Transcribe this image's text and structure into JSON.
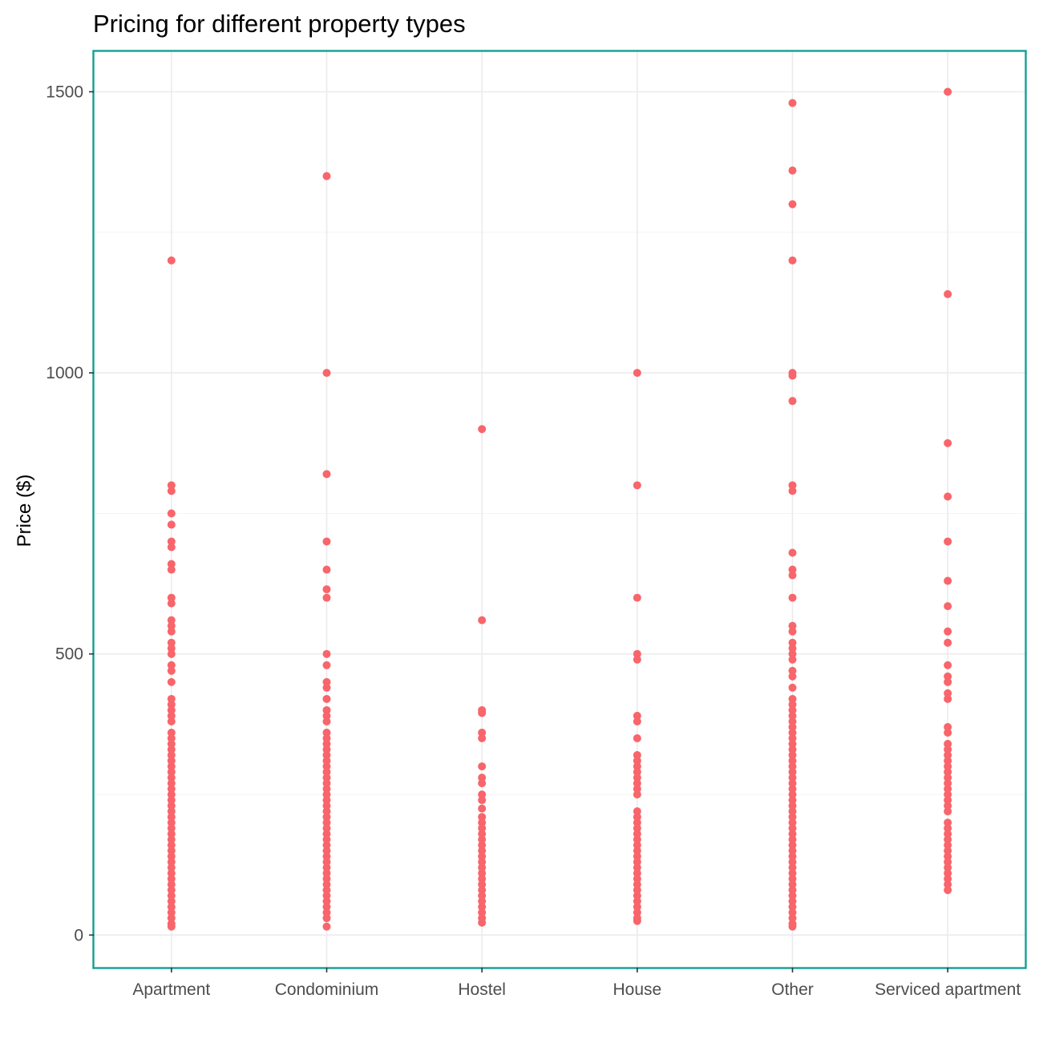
{
  "chart_data": {
    "type": "scatter",
    "title": "Pricing for different property types",
    "xlabel": "",
    "ylabel": "Price ($)",
    "categories": [
      "Apartment",
      "Condominium",
      "Hostel",
      "House",
      "Other",
      "Serviced apartment"
    ],
    "yticks": [
      0,
      500,
      1000,
      1500
    ],
    "ylim": [
      -58,
      1572
    ],
    "grid": true,
    "colors": {
      "points": "#f8656b",
      "panel_border": "#139f92"
    },
    "series": [
      {
        "category": "Apartment",
        "values": [
          1200,
          800,
          790,
          750,
          730,
          700,
          690,
          660,
          650,
          600,
          590,
          560,
          550,
          540,
          520,
          510,
          500,
          480,
          470,
          450,
          420,
          410,
          400,
          390,
          380,
          360,
          350,
          340,
          330,
          320,
          310,
          300,
          290,
          280,
          270,
          260,
          250,
          240,
          230,
          220,
          210,
          200,
          190,
          180,
          170,
          160,
          150,
          140,
          130,
          120,
          110,
          100,
          90,
          80,
          70,
          60,
          50,
          40,
          30,
          20,
          15
        ]
      },
      {
        "category": "Condominium",
        "values": [
          1350,
          1000,
          820,
          700,
          650,
          615,
          600,
          500,
          480,
          450,
          440,
          420,
          400,
          390,
          380,
          360,
          350,
          340,
          330,
          320,
          310,
          300,
          290,
          280,
          270,
          260,
          250,
          240,
          230,
          220,
          210,
          200,
          190,
          180,
          170,
          160,
          150,
          140,
          130,
          120,
          110,
          100,
          90,
          80,
          70,
          60,
          50,
          40,
          30,
          15
        ]
      },
      {
        "category": "Hostel",
        "values": [
          900,
          560,
          400,
          395,
          360,
          350,
          300,
          280,
          270,
          250,
          240,
          225,
          210,
          200,
          190,
          180,
          170,
          160,
          150,
          140,
          130,
          120,
          110,
          100,
          90,
          80,
          70,
          60,
          50,
          40,
          30,
          22
        ]
      },
      {
        "category": "House",
        "values": [
          1000,
          800,
          600,
          500,
          490,
          390,
          380,
          350,
          320,
          310,
          300,
          290,
          280,
          270,
          260,
          250,
          220,
          210,
          200,
          190,
          180,
          170,
          160,
          150,
          140,
          130,
          120,
          110,
          100,
          90,
          80,
          70,
          60,
          50,
          40,
          30,
          25
        ]
      },
      {
        "category": "Other",
        "values": [
          1480,
          1360,
          1300,
          1200,
          1000,
          995,
          950,
          800,
          790,
          680,
          650,
          640,
          600,
          550,
          540,
          520,
          510,
          500,
          490,
          470,
          460,
          440,
          420,
          410,
          400,
          390,
          380,
          370,
          360,
          350,
          340,
          330,
          320,
          310,
          300,
          290,
          280,
          270,
          260,
          250,
          240,
          230,
          220,
          210,
          200,
          190,
          180,
          170,
          160,
          150,
          140,
          130,
          120,
          110,
          100,
          90,
          80,
          70,
          60,
          50,
          40,
          30,
          20,
          15
        ]
      },
      {
        "category": "Serviced apartment",
        "values": [
          1500,
          1140,
          875,
          780,
          700,
          630,
          585,
          540,
          520,
          480,
          460,
          450,
          430,
          420,
          370,
          360,
          340,
          330,
          320,
          310,
          300,
          290,
          280,
          270,
          260,
          250,
          240,
          230,
          220,
          200,
          190,
          180,
          170,
          160,
          150,
          140,
          130,
          120,
          110,
          100,
          90,
          80
        ]
      }
    ]
  }
}
